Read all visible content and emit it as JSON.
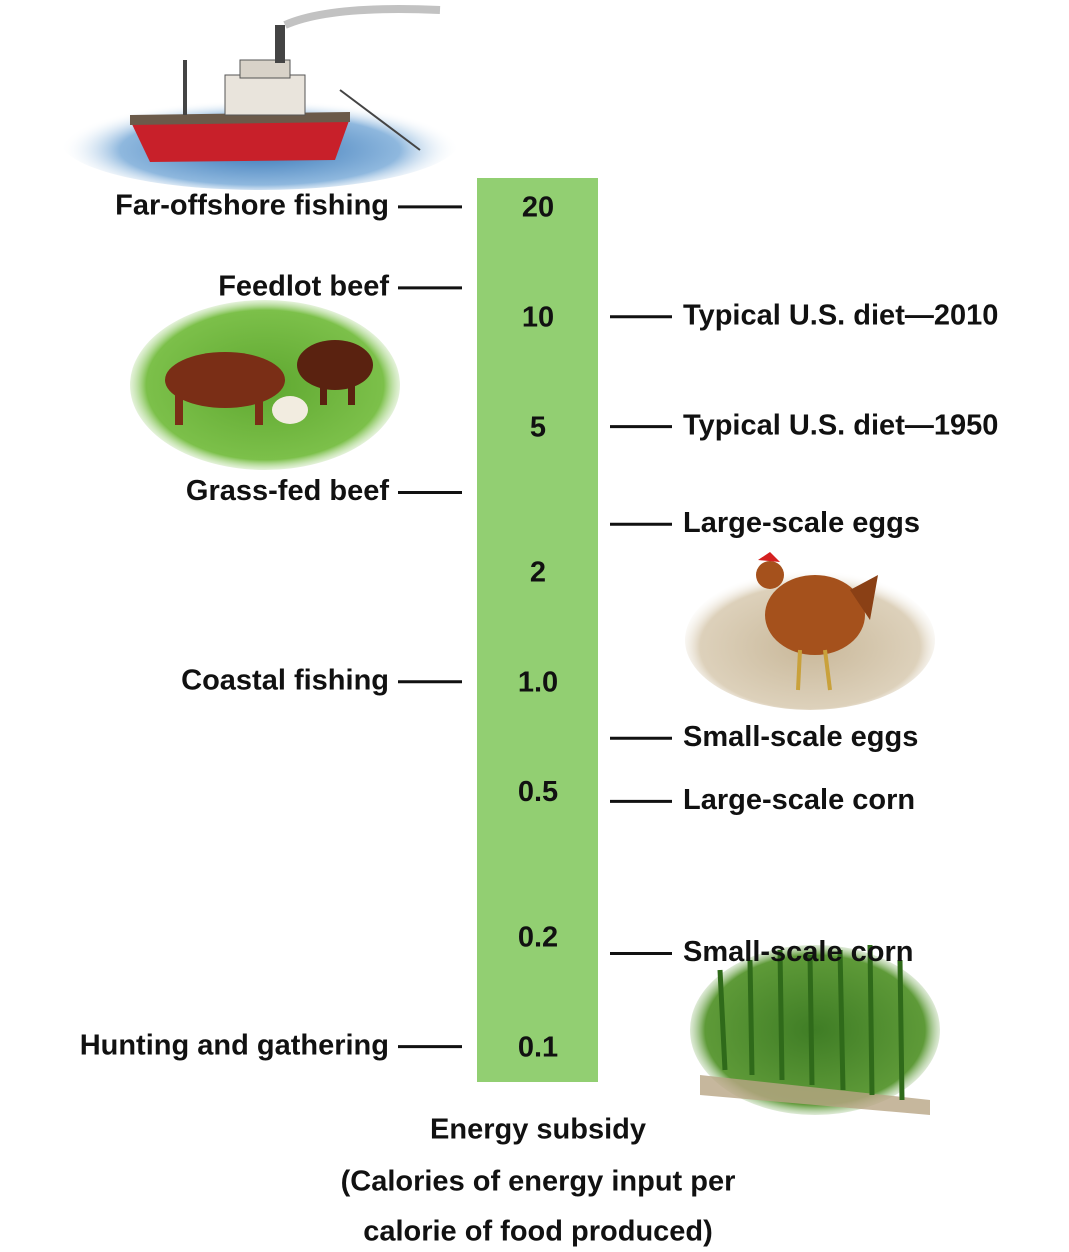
{
  "chart_data": {
    "type": "log-scale-bar",
    "log_scale": true,
    "color": "#92cf72",
    "ylim": [
      0.08,
      24
    ],
    "yticks": [
      20,
      10,
      5,
      2,
      {
        "value": 1,
        "label": "1.0"
      },
      0.5,
      0.2,
      0.1
    ],
    "left_items": {
      "labels": [
        "Far-offshore fishing",
        "Feedlot beef",
        "Grass-fed beef",
        "Coastal fishing",
        "Hunting and gathering"
      ],
      "values": [
        20,
        12,
        3.3,
        1,
        0.1
      ]
    },
    "right_items": {
      "labels": [
        "Typical U.S. diet—2010",
        "Typical U.S. diet—1950",
        "Large-scale eggs",
        "Small-scale eggs",
        "Large-scale corn",
        "Small-scale corn"
      ],
      "values": [
        10,
        5,
        2.7,
        0.7,
        0.47,
        0.18
      ]
    },
    "axis_title": "Energy subsidy",
    "axis_note": [
      "(Calories of energy input per",
      "calorie of food produced)"
    ]
  }
}
